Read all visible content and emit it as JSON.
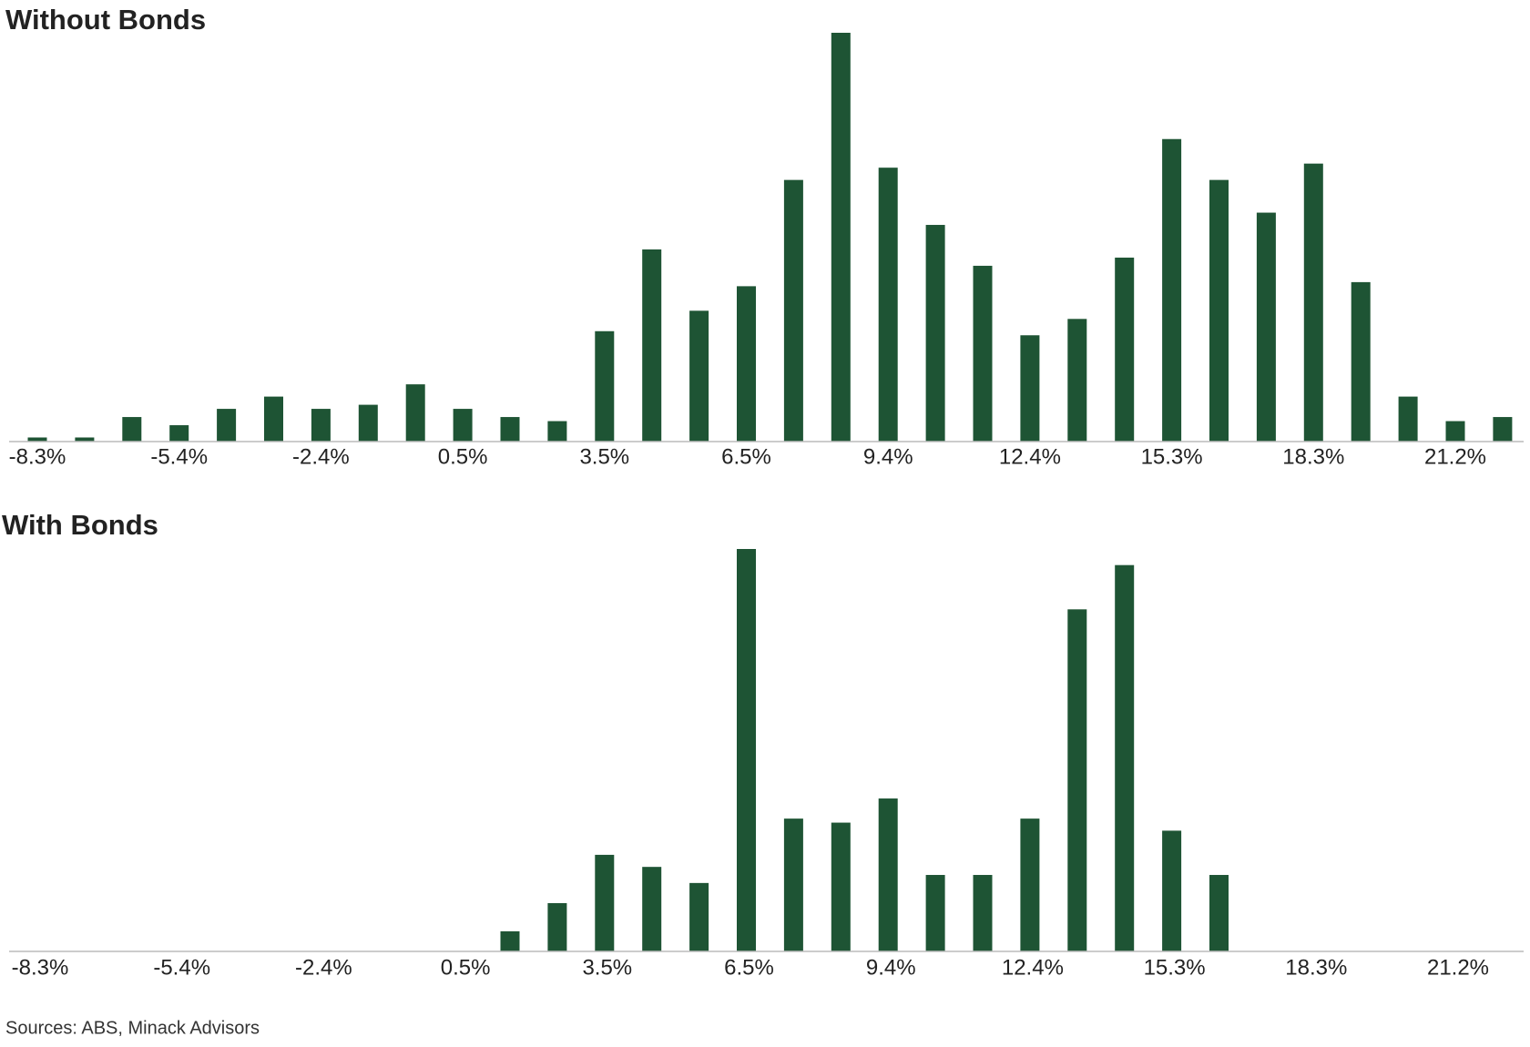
{
  "chart_data": [
    {
      "type": "bar",
      "title": "Without Bonds",
      "categories": [
        "-8.3%",
        null,
        null,
        "-5.4%",
        null,
        null,
        "-2.4%",
        null,
        null,
        "0.5%",
        null,
        null,
        "3.5%",
        null,
        null,
        "6.5%",
        null,
        null,
        "9.4%",
        null,
        null,
        "12.4%",
        null,
        null,
        "15.3%",
        null,
        null,
        "18.3%",
        null,
        null,
        "21.2%",
        null
      ],
      "values": [
        1,
        1,
        6,
        4,
        8,
        11,
        8,
        9,
        14,
        8,
        6,
        5,
        27,
        47,
        32,
        38,
        64,
        100,
        67,
        53,
        43,
        26,
        30,
        45,
        74,
        64,
        56,
        68,
        39,
        11,
        5,
        6
      ],
      "color": "#1e5434",
      "ylim": [
        0,
        100
      ]
    },
    {
      "type": "bar",
      "title": "With Bonds",
      "categories": [
        "-8.3%",
        null,
        null,
        "-5.4%",
        null,
        null,
        "-2.4%",
        null,
        null,
        "0.5%",
        null,
        null,
        "3.5%",
        null,
        null,
        "6.5%",
        null,
        null,
        "9.4%",
        null,
        null,
        "12.4%",
        null,
        null,
        "15.3%",
        null,
        null,
        "18.3%",
        null,
        null,
        "21.2%",
        null
      ],
      "values": [
        0,
        0,
        0,
        0,
        0,
        0,
        0,
        0,
        0,
        0,
        5,
        12,
        24,
        21,
        17,
        100,
        33,
        32,
        38,
        19,
        19,
        33,
        85,
        96,
        30,
        19,
        0,
        0,
        0,
        0,
        0,
        0
      ],
      "color": "#1e5434",
      "ylim": [
        0,
        100
      ]
    }
  ],
  "source": "Sources: ABS, Minack Advisors"
}
